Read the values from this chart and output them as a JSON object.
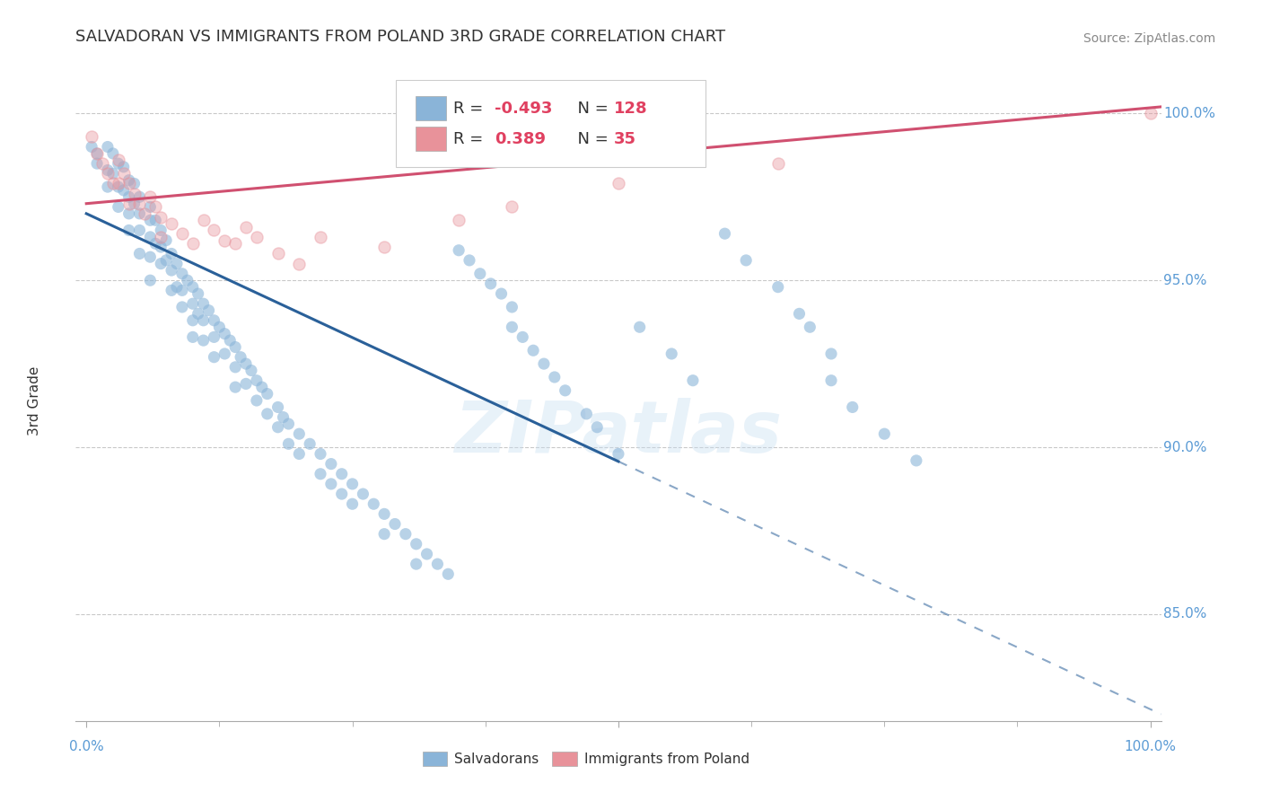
{
  "title": "SALVADORAN VS IMMIGRANTS FROM POLAND 3RD GRADE CORRELATION CHART",
  "source": "Source: ZipAtlas.com",
  "ylabel": "3rd Grade",
  "watermark": "ZIPatlas",
  "ylim_min": 0.818,
  "ylim_max": 1.01,
  "xlim_min": -0.01,
  "xlim_max": 1.01,
  "yticks": [
    0.85,
    0.9,
    0.95,
    1.0
  ],
  "ytick_labels": [
    "85.0%",
    "90.0%",
    "95.0%",
    "100.0%"
  ],
  "dot_color_blue": "#8ab4d8",
  "dot_color_pink": "#e8929a",
  "trend_color_blue": "#2a6099",
  "trend_color_pink": "#d05070",
  "legend_R_blue": "-0.493",
  "legend_N_blue": "128",
  "legend_R_pink": "0.389",
  "legend_N_pink": "35",
  "background_color": "#ffffff",
  "title_fontsize": 13,
  "source_fontsize": 10,
  "legend_fontsize": 13,
  "axis_fontsize": 11,
  "right_label_color": "#5b9bd5",
  "grid_color": "#bbbbbb",
  "blue_trend_start_x": 0.0,
  "blue_trend_solid_end_x": 0.5,
  "blue_trend_dashed_end_x": 1.01,
  "blue_trend_start_y": 0.97,
  "blue_trend_end_y": 0.82,
  "pink_trend_start_x": 0.0,
  "pink_trend_end_x": 1.01,
  "pink_trend_start_y": 0.973,
  "pink_trend_end_y": 1.002,
  "blue_scatter_x": [
    0.005,
    0.01,
    0.01,
    0.02,
    0.02,
    0.02,
    0.025,
    0.025,
    0.03,
    0.03,
    0.03,
    0.035,
    0.035,
    0.04,
    0.04,
    0.04,
    0.04,
    0.045,
    0.045,
    0.05,
    0.05,
    0.05,
    0.05,
    0.06,
    0.06,
    0.06,
    0.06,
    0.06,
    0.065,
    0.065,
    0.07,
    0.07,
    0.07,
    0.075,
    0.075,
    0.08,
    0.08,
    0.08,
    0.085,
    0.085,
    0.09,
    0.09,
    0.09,
    0.095,
    0.1,
    0.1,
    0.1,
    0.1,
    0.105,
    0.105,
    0.11,
    0.11,
    0.11,
    0.115,
    0.12,
    0.12,
    0.12,
    0.125,
    0.13,
    0.13,
    0.135,
    0.14,
    0.14,
    0.14,
    0.145,
    0.15,
    0.15,
    0.155,
    0.16,
    0.16,
    0.165,
    0.17,
    0.17,
    0.18,
    0.18,
    0.185,
    0.19,
    0.19,
    0.2,
    0.2,
    0.21,
    0.22,
    0.22,
    0.23,
    0.23,
    0.24,
    0.24,
    0.25,
    0.25,
    0.26,
    0.27,
    0.28,
    0.28,
    0.29,
    0.3,
    0.31,
    0.31,
    0.32,
    0.33,
    0.34,
    0.35,
    0.36,
    0.37,
    0.38,
    0.39,
    0.4,
    0.4,
    0.41,
    0.42,
    0.43,
    0.44,
    0.45,
    0.47,
    0.48,
    0.5,
    0.52,
    0.55,
    0.57,
    0.6,
    0.62,
    0.65,
    0.67,
    0.68,
    0.7,
    0.7,
    0.72,
    0.75,
    0.78
  ],
  "blue_scatter_y": [
    0.99,
    0.988,
    0.985,
    0.99,
    0.983,
    0.978,
    0.988,
    0.982,
    0.985,
    0.978,
    0.972,
    0.984,
    0.977,
    0.98,
    0.975,
    0.97,
    0.965,
    0.979,
    0.973,
    0.975,
    0.97,
    0.965,
    0.958,
    0.972,
    0.968,
    0.963,
    0.957,
    0.95,
    0.968,
    0.961,
    0.965,
    0.96,
    0.955,
    0.962,
    0.956,
    0.958,
    0.953,
    0.947,
    0.955,
    0.948,
    0.952,
    0.947,
    0.942,
    0.95,
    0.948,
    0.943,
    0.938,
    0.933,
    0.946,
    0.94,
    0.943,
    0.938,
    0.932,
    0.941,
    0.938,
    0.933,
    0.927,
    0.936,
    0.934,
    0.928,
    0.932,
    0.93,
    0.924,
    0.918,
    0.927,
    0.925,
    0.919,
    0.923,
    0.92,
    0.914,
    0.918,
    0.916,
    0.91,
    0.912,
    0.906,
    0.909,
    0.907,
    0.901,
    0.904,
    0.898,
    0.901,
    0.898,
    0.892,
    0.895,
    0.889,
    0.892,
    0.886,
    0.889,
    0.883,
    0.886,
    0.883,
    0.88,
    0.874,
    0.877,
    0.874,
    0.871,
    0.865,
    0.868,
    0.865,
    0.862,
    0.959,
    0.956,
    0.952,
    0.949,
    0.946,
    0.942,
    0.936,
    0.933,
    0.929,
    0.925,
    0.921,
    0.917,
    0.91,
    0.906,
    0.898,
    0.936,
    0.928,
    0.92,
    0.964,
    0.956,
    0.948,
    0.94,
    0.936,
    0.928,
    0.92,
    0.912,
    0.904,
    0.896
  ],
  "pink_scatter_x": [
    0.005,
    0.01,
    0.015,
    0.02,
    0.025,
    0.03,
    0.03,
    0.035,
    0.04,
    0.04,
    0.045,
    0.05,
    0.055,
    0.06,
    0.065,
    0.07,
    0.07,
    0.08,
    0.09,
    0.1,
    0.11,
    0.12,
    0.13,
    0.14,
    0.15,
    0.16,
    0.18,
    0.2,
    0.22,
    0.28,
    0.35,
    0.4,
    0.5,
    0.65,
    1.0
  ],
  "pink_scatter_y": [
    0.993,
    0.988,
    0.985,
    0.982,
    0.979,
    0.986,
    0.979,
    0.982,
    0.979,
    0.973,
    0.976,
    0.973,
    0.97,
    0.975,
    0.972,
    0.969,
    0.963,
    0.967,
    0.964,
    0.961,
    0.968,
    0.965,
    0.962,
    0.961,
    0.966,
    0.963,
    0.958,
    0.955,
    0.963,
    0.96,
    0.968,
    0.972,
    0.979,
    0.985,
    1.0
  ]
}
